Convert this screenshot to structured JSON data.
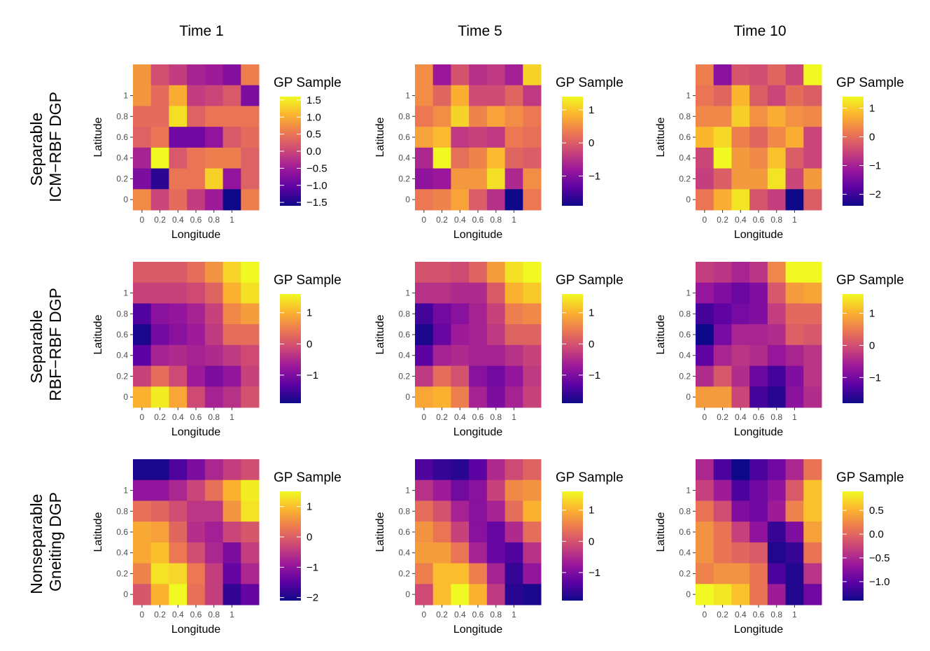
{
  "column_titles": [
    "Time 1",
    "Time 5",
    "Time 10"
  ],
  "row_titles": [
    [
      "Separable",
      "ICM−RBF DGP"
    ],
    [
      "Separable",
      "RBF−RBF DGP"
    ],
    [
      "Nonseparable",
      "Gneiting DGP"
    ]
  ],
  "colormap": [
    "#0d0887",
    "#5b02a3",
    "#9a179b",
    "#cb4678",
    "#eb7852",
    "#fbb32f",
    "#f0f921"
  ],
  "chart_data": [
    {
      "type": "heatmap",
      "row": 0,
      "col": 0,
      "xlabel": "Longitude",
      "ylabel": "Latitude",
      "legend_title": "GP Sample",
      "x": [
        0,
        0.2,
        0.4,
        0.6,
        0.8,
        1
      ],
      "y": [
        0,
        0.2,
        0.4,
        0.6,
        0.8,
        1
      ],
      "tick_labels_x": [
        "0",
        "0.2",
        "0.4",
        "0.6",
        "0.8",
        "1"
      ],
      "tick_labels_y": [
        "0",
        "0.2",
        "0.4",
        "0.6",
        "0.8",
        "1"
      ],
      "value_range": [
        -1.6,
        1.6
      ],
      "legend_ticks": [
        1.5,
        1.0,
        0.5,
        0.0,
        -0.5,
        -1.0,
        -1.5
      ],
      "legend_tick_labels": [
        "1.5",
        "1.0",
        "0.5",
        "0.0",
        "−0.5",
        "−1.0",
        "−1.5"
      ],
      "values": [
        [
          0.8,
          0.1,
          -0.1,
          -0.4,
          -0.5,
          -0.7,
          0.6
        ],
        [
          0.8,
          0.4,
          1.0,
          -0.1,
          0.0,
          0.2,
          -0.8
        ],
        [
          0.4,
          0.4,
          1.4,
          0.3,
          0.5,
          0.5,
          0.5
        ],
        [
          0.3,
          0.5,
          -0.9,
          -0.9,
          -0.6,
          0.2,
          0.4
        ],
        [
          -0.4,
          1.6,
          0.2,
          0.5,
          0.6,
          0.6,
          0.3
        ],
        [
          -0.8,
          -1.4,
          0.5,
          0.5,
          1.3,
          -0.6,
          0.3
        ],
        [
          0.7,
          0.0,
          0.4,
          -0.1,
          -0.5,
          -1.6,
          0.6
        ]
      ]
    },
    {
      "type": "heatmap",
      "row": 0,
      "col": 1,
      "xlabel": "Longitude",
      "ylabel": "Latitude",
      "legend_title": "GP Sample",
      "x": [
        0,
        0.2,
        0.4,
        0.6,
        0.8,
        1
      ],
      "y": [
        0,
        0.2,
        0.4,
        0.6,
        0.8,
        1
      ],
      "tick_labels_x": [
        "0",
        "0.2",
        "0.4",
        "0.6",
        "0.8",
        "1"
      ],
      "tick_labels_y": [
        "0",
        "0.2",
        "0.4",
        "0.6",
        "0.8",
        "1"
      ],
      "value_range": [
        -1.9,
        1.4
      ],
      "legend_ticks": [
        1,
        0,
        -1
      ],
      "legend_tick_labels": [
        "1",
        "0",
        "−1"
      ],
      "values": [
        [
          0.5,
          -0.8,
          -0.1,
          -0.5,
          -0.4,
          -0.7,
          1.1
        ],
        [
          0.5,
          0.1,
          0.8,
          -0.2,
          -0.2,
          0.1,
          -0.4
        ],
        [
          0.3,
          0.5,
          1.1,
          0.4,
          0.7,
          0.5,
          0.3
        ],
        [
          0.7,
          0.9,
          -0.4,
          -0.3,
          -0.4,
          0.3,
          0.2
        ],
        [
          -0.6,
          1.4,
          0.2,
          0.4,
          0.9,
          0.1,
          0.0
        ],
        [
          -0.9,
          -0.8,
          0.6,
          0.6,
          1.2,
          -0.6,
          0.5
        ],
        [
          0.3,
          0.4,
          0.7,
          0.0,
          -0.5,
          -1.9,
          0.3
        ]
      ]
    },
    {
      "type": "heatmap",
      "row": 0,
      "col": 2,
      "xlabel": "Longitude",
      "ylabel": "Latitude",
      "legend_title": "GP Sample",
      "x": [
        0,
        0.2,
        0.4,
        0.6,
        0.8,
        1
      ],
      "y": [
        0,
        0.2,
        0.4,
        0.6,
        0.8,
        1
      ],
      "tick_labels_x": [
        "0",
        "0.2",
        "0.4",
        "0.6",
        "0.8",
        "1"
      ],
      "tick_labels_y": [
        "0",
        "0.2",
        "0.4",
        "0.6",
        "0.8",
        "1"
      ],
      "value_range": [
        -2.4,
        1.4
      ],
      "legend_ticks": [
        1,
        0,
        -1,
        -2
      ],
      "legend_tick_labels": [
        "1",
        "0",
        "−1",
        "−2"
      ],
      "values": [
        [
          0.2,
          -1.3,
          -0.3,
          -0.4,
          -0.1,
          -0.5,
          1.4
        ],
        [
          0.1,
          -0.1,
          0.8,
          -0.2,
          -0.5,
          0.0,
          -0.2
        ],
        [
          0.3,
          0.3,
          1.0,
          0.4,
          0.7,
          0.4,
          0.3
        ],
        [
          0.8,
          1.1,
          0.2,
          -0.1,
          0.3,
          0.7,
          -0.5
        ],
        [
          -0.5,
          1.4,
          0.5,
          0.3,
          0.9,
          -0.2,
          -0.5
        ],
        [
          -0.6,
          -0.2,
          0.5,
          0.5,
          1.2,
          -0.5,
          0.5
        ],
        [
          0.1,
          0.7,
          1.2,
          -0.3,
          -0.6,
          -2.4,
          -0.2
        ]
      ]
    },
    {
      "type": "heatmap",
      "row": 1,
      "col": 0,
      "xlabel": "Longitude",
      "ylabel": "Latitude",
      "legend_title": "GP Sample",
      "x": [
        0,
        0.2,
        0.4,
        0.6,
        0.8,
        1
      ],
      "y": [
        0,
        0.2,
        0.4,
        0.6,
        0.8,
        1
      ],
      "tick_labels_x": [
        "0",
        "0.2",
        "0.4",
        "0.6",
        "0.8",
        "1"
      ],
      "tick_labels_y": [
        "0",
        "0.2",
        "0.4",
        "0.6",
        "0.8",
        "1"
      ],
      "value_range": [
        -1.9,
        1.6
      ],
      "legend_ticks": [
        1,
        0,
        -1
      ],
      "legend_tick_labels": [
        "1",
        "0",
        "−1"
      ],
      "values": [
        [
          0.1,
          0.1,
          0.1,
          0.3,
          0.7,
          1.3,
          1.6
        ],
        [
          -0.2,
          -0.2,
          -0.2,
          -0.1,
          0.2,
          1.0,
          1.4
        ],
        [
          -1.4,
          -0.9,
          -0.8,
          -0.6,
          -0.2,
          0.6,
          0.8
        ],
        [
          -1.8,
          -1.1,
          -0.9,
          -0.7,
          -0.3,
          0.3,
          0.3
        ],
        [
          -1.3,
          -0.6,
          -0.5,
          -0.6,
          -0.5,
          -0.3,
          -0.1
        ],
        [
          -0.2,
          0.3,
          -0.1,
          -0.7,
          -1.0,
          -0.8,
          -0.2
        ],
        [
          1.0,
          1.5,
          0.9,
          -0.1,
          -0.6,
          -0.4,
          0.0
        ]
      ]
    },
    {
      "type": "heatmap",
      "row": 1,
      "col": 1,
      "xlabel": "Longitude",
      "ylabel": "Latitude",
      "legend_title": "GP Sample",
      "x": [
        0,
        0.2,
        0.4,
        0.6,
        0.8,
        1
      ],
      "y": [
        0,
        0.2,
        0.4,
        0.6,
        0.8,
        1
      ],
      "tick_labels_x": [
        "0",
        "0.2",
        "0.4",
        "0.6",
        "0.8",
        "1"
      ],
      "tick_labels_y": [
        "0",
        "0.2",
        "0.4",
        "0.6",
        "0.8",
        "1"
      ],
      "value_range": [
        -1.9,
        1.6
      ],
      "legend_ticks": [
        1,
        0,
        -1
      ],
      "legend_tick_labels": [
        "1",
        "0",
        "−1"
      ],
      "values": [
        [
          0.0,
          0.0,
          -0.1,
          0.2,
          0.8,
          1.4,
          1.6
        ],
        [
          -0.4,
          -0.4,
          -0.5,
          -0.5,
          0.1,
          1.0,
          1.2
        ],
        [
          -1.5,
          -1.1,
          -0.9,
          -0.6,
          -0.2,
          0.5,
          0.6
        ],
        [
          -1.8,
          -1.2,
          -0.7,
          -0.6,
          -0.3,
          0.2,
          0.2
        ],
        [
          -1.3,
          -0.6,
          -0.5,
          -0.6,
          -0.6,
          -0.4,
          -0.2
        ],
        [
          -0.3,
          0.3,
          0.0,
          -0.9,
          -1.1,
          -0.8,
          -0.3
        ],
        [
          0.9,
          1.0,
          0.5,
          -0.6,
          -1.0,
          -0.6,
          -0.2
        ]
      ]
    },
    {
      "type": "heatmap",
      "row": 1,
      "col": 2,
      "xlabel": "Longitude",
      "ylabel": "Latitude",
      "legend_title": "GP Sample",
      "x": [
        0,
        0.2,
        0.4,
        0.6,
        0.8,
        1
      ],
      "y": [
        0,
        0.2,
        0.4,
        0.6,
        0.8,
        1
      ],
      "tick_labels_x": [
        "0",
        "0.2",
        "0.4",
        "0.6",
        "0.8",
        "1"
      ],
      "tick_labels_y": [
        "0",
        "0.2",
        "0.4",
        "0.6",
        "0.8",
        "1"
      ],
      "value_range": [
        -1.8,
        1.6
      ],
      "legend_ticks": [
        1,
        0,
        -1
      ],
      "legend_tick_labels": [
        "1",
        "0",
        "−1"
      ],
      "values": [
        [
          -0.2,
          -0.3,
          -0.5,
          -0.3,
          0.6,
          1.6,
          1.6
        ],
        [
          -0.7,
          -0.9,
          -1.1,
          -0.9,
          0.1,
          0.8,
          0.9
        ],
        [
          -1.4,
          -1.2,
          -1.0,
          -0.9,
          -0.2,
          0.3,
          0.3
        ],
        [
          -1.8,
          -1.0,
          -0.5,
          -0.5,
          -0.4,
          0.2,
          0.1
        ],
        [
          -1.2,
          -0.5,
          -0.3,
          -0.4,
          -0.7,
          -0.5,
          -0.3
        ],
        [
          -0.4,
          0.1,
          -0.4,
          -1.1,
          -1.4,
          -0.9,
          -0.3
        ],
        [
          0.8,
          0.8,
          -0.1,
          -1.4,
          -1.6,
          -0.8,
          -0.4
        ]
      ]
    },
    {
      "type": "heatmap",
      "row": 2,
      "col": 0,
      "xlabel": "Longitude",
      "ylabel": "Latitude",
      "legend_title": "GP Sample",
      "x": [
        0,
        0.2,
        0.4,
        0.6,
        0.8,
        1
      ],
      "y": [
        0,
        0.2,
        0.4,
        0.6,
        0.8,
        1
      ],
      "tick_labels_x": [
        "0",
        "0.2",
        "0.4",
        "0.6",
        "0.8",
        "1"
      ],
      "tick_labels_y": [
        "0",
        "0.2",
        "0.4",
        "0.6",
        "0.8",
        "1"
      ],
      "value_range": [
        -2.1,
        1.5
      ],
      "legend_ticks": [
        1,
        0,
        -1,
        -2
      ],
      "legend_tick_labels": [
        "1",
        "0",
        "−1",
        "−2"
      ],
      "values": [
        [
          -2.0,
          -2.0,
          -1.6,
          -1.2,
          -0.7,
          -0.4,
          -0.2
        ],
        [
          -1.0,
          -1.0,
          -0.7,
          -0.3,
          0.2,
          0.9,
          1.4
        ],
        [
          0.2,
          0.1,
          -0.2,
          -0.5,
          -0.5,
          0.6,
          1.3
        ],
        [
          0.8,
          0.7,
          0.1,
          -0.6,
          -0.8,
          -0.3,
          -0.1
        ],
        [
          0.8,
          1.0,
          0.3,
          -0.2,
          -0.7,
          -1.2,
          -0.4
        ],
        [
          0.4,
          1.3,
          1.2,
          0.3,
          -0.4,
          -1.4,
          -0.7
        ],
        [
          -0.1,
          0.9,
          1.5,
          0.2,
          -0.4,
          -1.8,
          -1.4
        ]
      ]
    },
    {
      "type": "heatmap",
      "row": 2,
      "col": 1,
      "xlabel": "Longitude",
      "ylabel": "Latitude",
      "legend_title": "GP Sample",
      "x": [
        0,
        0.2,
        0.4,
        0.6,
        0.8,
        1
      ],
      "y": [
        0,
        0.2,
        0.4,
        0.6,
        0.8,
        1
      ],
      "tick_labels_x": [
        "0",
        "0.2",
        "0.4",
        "0.6",
        "0.8",
        "1"
      ],
      "tick_labels_y": [
        "0",
        "0.2",
        "0.4",
        "0.6",
        "0.8",
        "1"
      ],
      "value_range": [
        -1.9,
        1.6
      ],
      "legend_ticks": [
        1,
        0,
        -1
      ],
      "legend_tick_labels": [
        "1",
        "0",
        "−1"
      ],
      "values": [
        [
          -1.4,
          -1.6,
          -1.7,
          -1.3,
          -0.5,
          -0.1,
          0.2
        ],
        [
          -0.4,
          -0.7,
          -1.1,
          -0.9,
          -0.2,
          0.6,
          0.7
        ],
        [
          0.3,
          0.0,
          -0.6,
          -0.9,
          -0.6,
          0.3,
          1.0
        ],
        [
          0.7,
          0.4,
          -0.2,
          -0.9,
          -1.2,
          -0.5,
          0.3
        ],
        [
          0.8,
          0.8,
          0.4,
          -0.6,
          -1.2,
          -1.4,
          -0.4
        ],
        [
          0.5,
          1.1,
          1.1,
          0.5,
          -0.6,
          -1.6,
          -0.8
        ],
        [
          -0.1,
          1.1,
          1.6,
          1.0,
          -0.3,
          -1.7,
          -1.8
        ]
      ]
    },
    {
      "type": "heatmap",
      "row": 2,
      "col": 2,
      "xlabel": "Longitude",
      "ylabel": "Latitude",
      "legend_title": "GP Sample",
      "x": [
        0,
        0.2,
        0.4,
        0.6,
        0.8,
        1
      ],
      "y": [
        0,
        0.2,
        0.4,
        0.6,
        0.8,
        1
      ],
      "tick_labels_x": [
        "0",
        "0.2",
        "0.4",
        "0.6",
        "0.8",
        "1"
      ],
      "tick_labels_y": [
        "0",
        "0.2",
        "0.4",
        "0.6",
        "0.8",
        "1"
      ],
      "value_range": [
        -1.4,
        0.9
      ],
      "legend_ticks": [
        0.5,
        0.0,
        -0.5,
        -1.0
      ],
      "legend_tick_labels": [
        "0.5",
        "0.0",
        "−0.5",
        "−1.0"
      ],
      "values": [
        [
          -0.5,
          -1.1,
          -1.4,
          -1.1,
          -0.9,
          -0.5,
          0.1
        ],
        [
          -0.3,
          -0.6,
          -1.1,
          -0.9,
          -0.7,
          -0.1,
          0.6
        ],
        [
          0.1,
          -0.2,
          -0.8,
          -0.9,
          -0.6,
          0.2,
          0.6
        ],
        [
          0.3,
          0.1,
          -0.3,
          -0.7,
          -1.2,
          -0.8,
          0.4
        ],
        [
          0.3,
          0.1,
          0.0,
          -0.1,
          -1.3,
          -1.2,
          0.1
        ],
        [
          0.2,
          0.3,
          0.3,
          0.1,
          -1.1,
          -1.3,
          -0.4
        ],
        [
          0.9,
          0.8,
          0.6,
          0.1,
          -0.6,
          -1.3,
          -0.9
        ]
      ]
    }
  ]
}
